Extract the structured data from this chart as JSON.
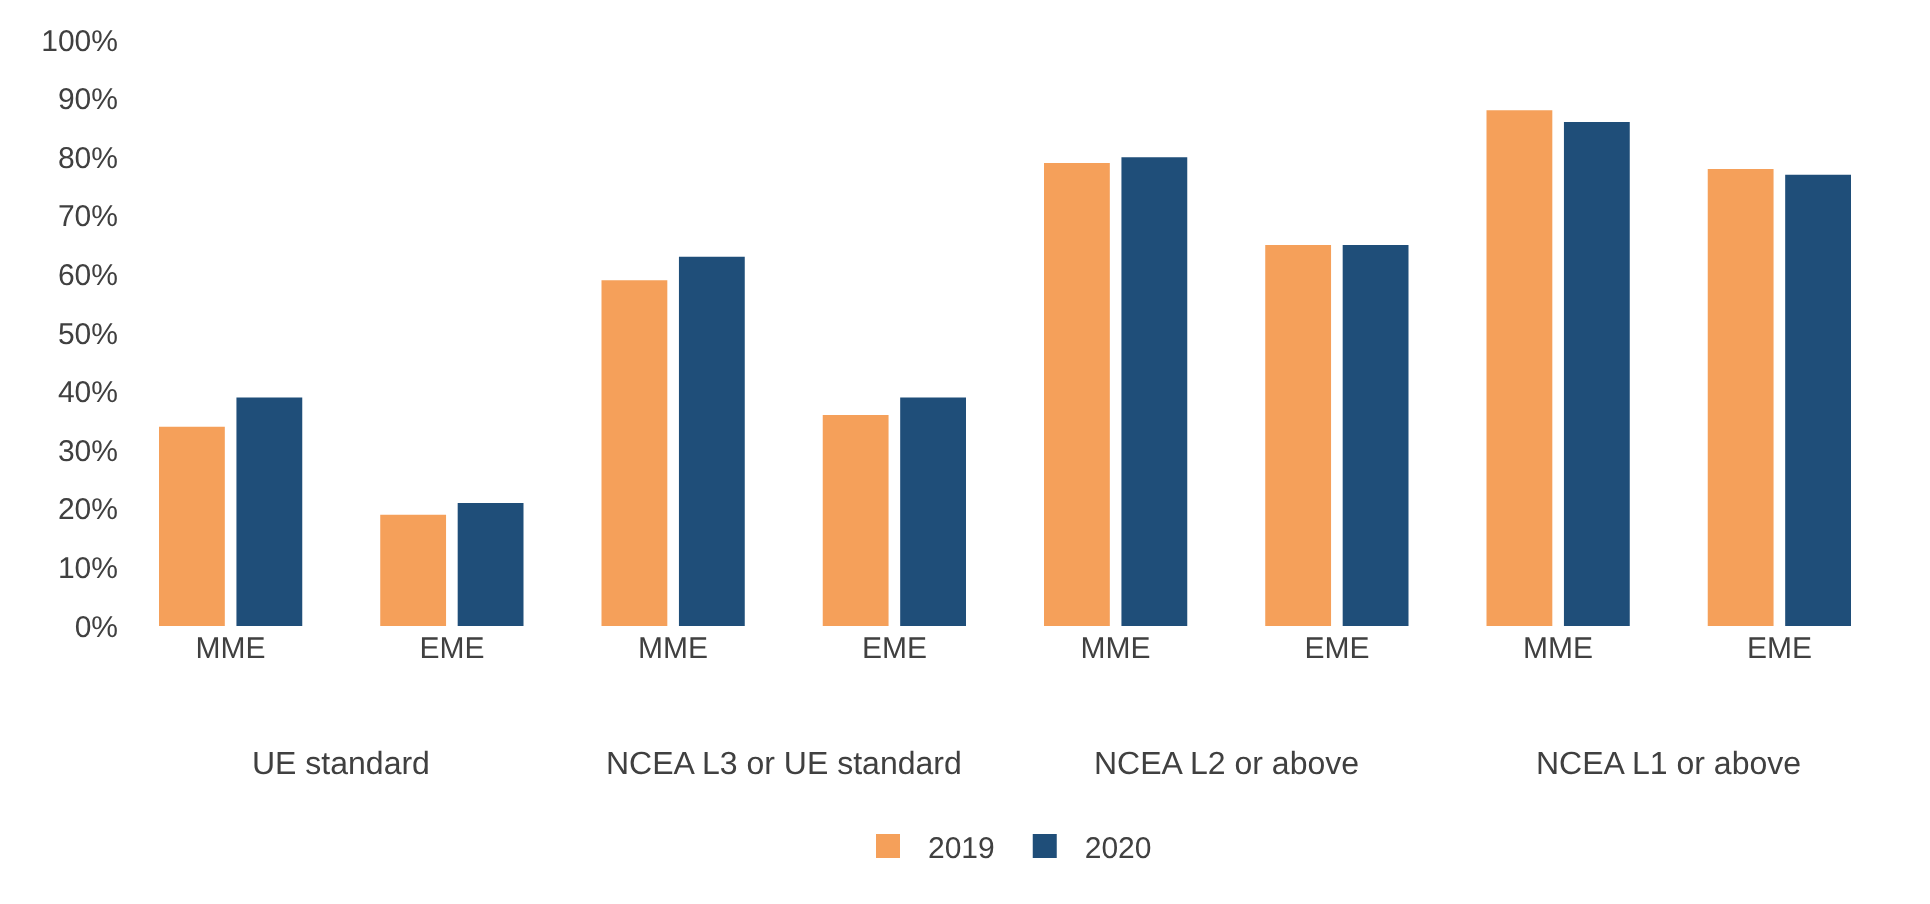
{
  "chart_data": {
    "type": "bar",
    "categories": [
      "MME",
      "EME",
      "MME",
      "EME",
      "MME",
      "EME",
      "MME",
      "EME"
    ],
    "series": [
      {
        "name": "2019",
        "color": "#f5a05a",
        "values": [
          34,
          19,
          59,
          36,
          79,
          65,
          88,
          78
        ]
      },
      {
        "name": "2020",
        "color": "#1f4e79",
        "values": [
          39,
          21,
          63,
          39,
          80,
          65,
          86,
          77
        ]
      }
    ],
    "ylim": [
      0,
      100
    ],
    "yticks": [
      {
        "value": 0,
        "label": "0%"
      },
      {
        "value": 10,
        "label": "10%"
      },
      {
        "value": 20,
        "label": "20%"
      },
      {
        "value": 30,
        "label": "30%"
      },
      {
        "value": 40,
        "label": "40%"
      },
      {
        "value": 50,
        "label": "50%"
      },
      {
        "value": 60,
        "label": "60%"
      },
      {
        "value": 70,
        "label": "70%"
      },
      {
        "value": 80,
        "label": "80%"
      },
      {
        "value": 90,
        "label": "90%"
      },
      {
        "value": 100,
        "label": "100%"
      }
    ],
    "annotations": [
      "UE standard",
      "NCEA L3 or UE standard",
      "NCEA L2 or above",
      "NCEA L1 or above"
    ],
    "grid": false,
    "legend": "bottom"
  }
}
